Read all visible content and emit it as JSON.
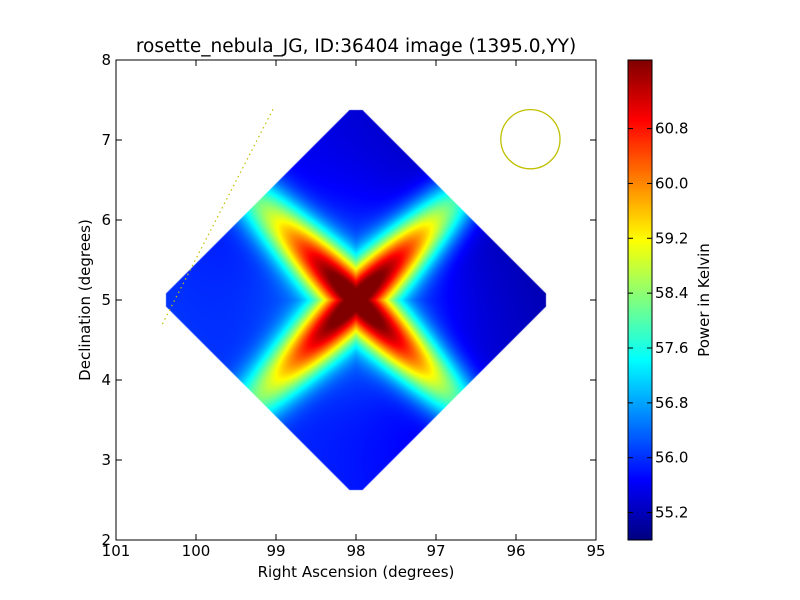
{
  "chart_data": {
    "type": "heatmap",
    "title": "rosette_nebula_JG, ID:36404 image (1395.0,YY)",
    "xlabel": "Right Ascension (degrees)",
    "ylabel": "Declination (degrees)",
    "xlim": [
      101,
      95
    ],
    "ylim": [
      2,
      8
    ],
    "xticks": [
      101,
      100,
      99,
      98,
      97,
      96,
      95
    ],
    "yticks": [
      2,
      3,
      4,
      5,
      6,
      7,
      8
    ],
    "xtick_labels": [
      "101",
      "100",
      "99",
      "98",
      "97",
      "96",
      "95"
    ],
    "ytick_labels": [
      "2",
      "3",
      "4",
      "5",
      "6",
      "7",
      "8"
    ],
    "colorbar": {
      "label": "Power in Kelvin",
      "range": [
        54.8,
        61.8
      ],
      "ticks": [
        55.2,
        56.0,
        56.8,
        57.6,
        58.4,
        59.2,
        60.0,
        60.8
      ],
      "tick_labels": [
        "55.2",
        "56.0",
        "56.8",
        "57.6",
        "58.4",
        "59.2",
        "60.0",
        "60.8"
      ],
      "colormap": "jet"
    },
    "field": {
      "center": [
        98.0,
        5.0
      ],
      "half_width_deg": 2.45,
      "background_min": 54.9,
      "background_max": 56.3,
      "peak": 61.6
    },
    "beam_circle": {
      "center": [
        95.82,
        7.01
      ],
      "radius_deg": 0.37,
      "color": "#c0c000"
    },
    "horizon_line": {
      "x": [
        100.42,
        99.03
      ],
      "y": [
        4.7,
        7.4
      ],
      "color": "#c0c000"
    },
    "grid": false,
    "legend": "none"
  }
}
